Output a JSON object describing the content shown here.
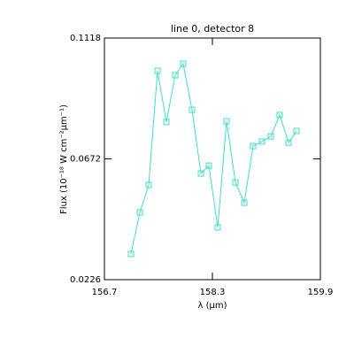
{
  "chart_data": {
    "type": "line",
    "title": "line 0, detector 8",
    "xlabel": "λ (μm)",
    "ylabel": "Flux (10⁻¹⁸ W cm⁻²μm⁻¹)",
    "x": [
      157.093,
      157.225,
      157.356,
      157.487,
      157.618,
      157.749,
      157.867,
      157.998,
      158.13,
      158.248,
      158.379,
      158.51,
      158.641,
      158.772,
      158.903,
      159.034,
      159.166,
      159.297,
      159.428,
      159.546
    ],
    "series": [
      {
        "name": null,
        "color": "#40e0c0",
        "marker": "square",
        "values": [
          0.0321,
          0.0474,
          0.0576,
          0.0997,
          0.0808,
          0.0981,
          0.1023,
          0.0853,
          0.0618,
          0.0647,
          0.0419,
          0.0811,
          0.0585,
          0.051,
          0.0719,
          0.0736,
          0.0755,
          0.0834,
          0.0732,
          0.0775
        ]
      }
    ],
    "xlim": [
      156.7,
      159.9
    ],
    "xticks": [
      156.7,
      158.3,
      159.9
    ],
    "ylim": [
      0.0226,
      0.1118
    ],
    "yticks": [
      0.0226,
      0.0672,
      0.1118
    ],
    "grid": false
  }
}
